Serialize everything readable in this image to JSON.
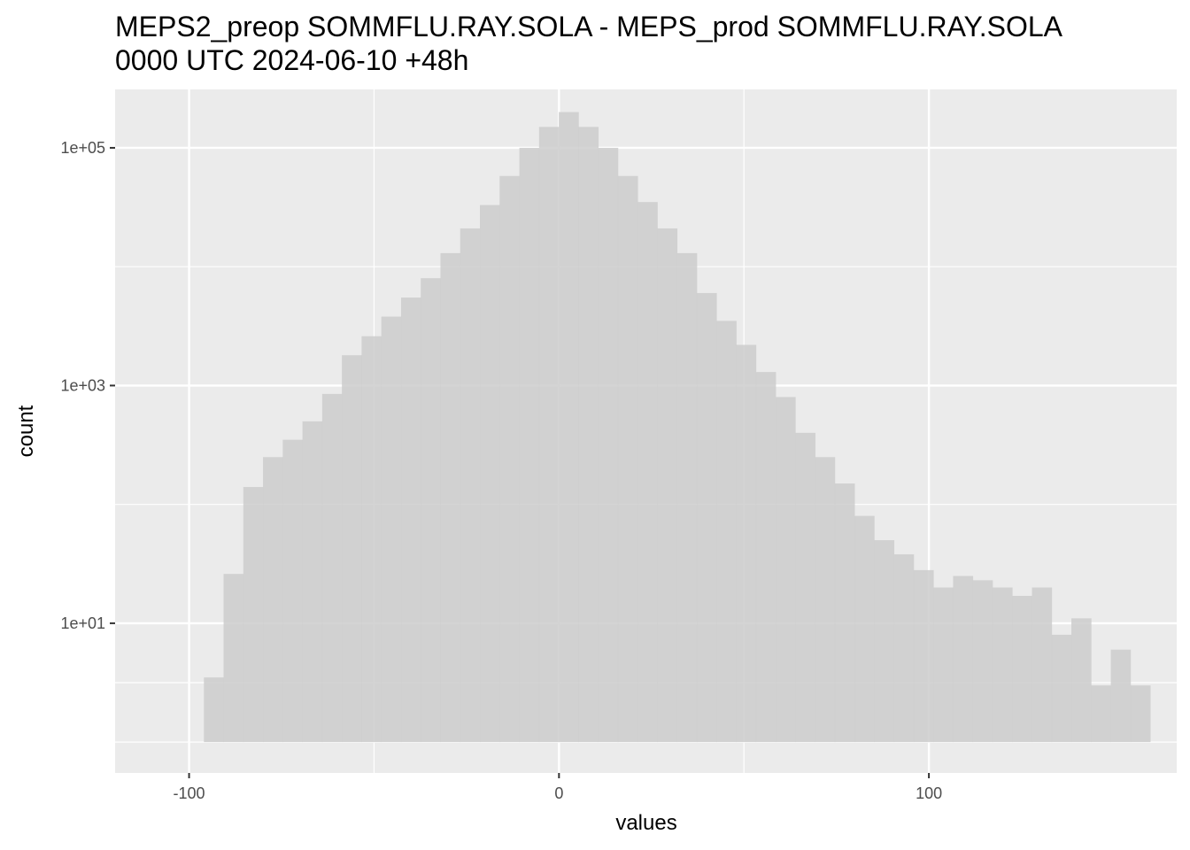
{
  "chart_data": {
    "type": "bar",
    "title_line1": "MEPS2_preop SOMMFLU.RAY.SOLA - MEPS_prod SOMMFLU.RAY.SOLA",
    "title_line2": "0000 UTC 2024-06-10 +48h",
    "xlabel": "values",
    "ylabel": "count",
    "y_scale": "log10",
    "xlim": [
      -120,
      167
    ],
    "ylim": [
      0.55,
      310000
    ],
    "x_ticks": [
      {
        "value": -100,
        "label": "-100"
      },
      {
        "value": 0,
        "label": "0"
      },
      {
        "value": 100,
        "label": "100"
      }
    ],
    "y_ticks": [
      {
        "value": 10,
        "label": "1e+01"
      },
      {
        "value": 1000,
        "label": "1e+03"
      },
      {
        "value": 100000,
        "label": "1e+05"
      }
    ],
    "grid": true,
    "bin_width": 5.33,
    "bins_x_start": -96,
    "counts": [
      3.5,
      26,
      140,
      250,
      350,
      500,
      850,
      1800,
      2600,
      3800,
      5500,
      8000,
      13000,
      21000,
      33000,
      58000,
      100000,
      150000,
      200000,
      150000,
      100000,
      58000,
      35000,
      21000,
      13000,
      6000,
      3500,
      2200,
      1300,
      800,
      400,
      250,
      150,
      80,
      50,
      38,
      28,
      20,
      25,
      23,
      20,
      17,
      20,
      8,
      11,
      3,
      6,
      3
    ],
    "bar_color": "#cccccc",
    "panel_color": "#ebebeb",
    "grid_color": "#ffffff"
  }
}
